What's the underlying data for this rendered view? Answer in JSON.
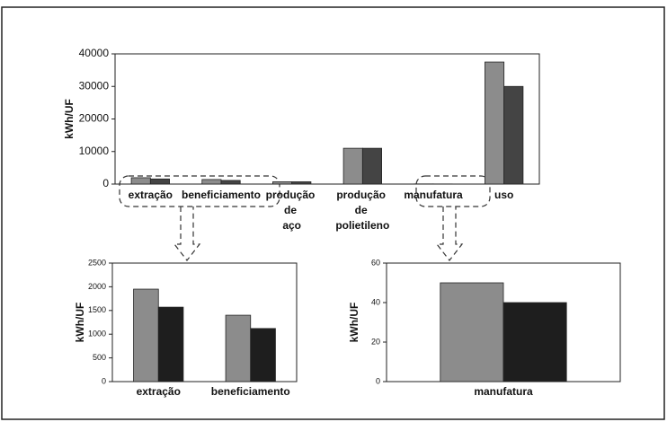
{
  "chart_data": [
    {
      "type": "bar",
      "ylabel": "kWh/UF",
      "categories": [
        "extração",
        "beneficiamento",
        "produção de aço",
        "produção de polietileno",
        "manufatura",
        "uso"
      ],
      "series": [
        {
          "color": "#8c8c8c",
          "values": [
            1950,
            1400,
            700,
            11000,
            50,
            37500
          ]
        },
        {
          "color": "#444444",
          "values": [
            1570,
            1120,
            700,
            11000,
            40,
            30000
          ]
        }
      ],
      "ylim": [
        0,
        40000
      ],
      "yticks": [
        0,
        10000,
        20000,
        30000,
        40000
      ]
    },
    {
      "type": "bar",
      "ylabel": "kWh/UF",
      "categories": [
        "extração",
        "beneficiamento"
      ],
      "series": [
        {
          "color": "#8c8c8c",
          "values": [
            1950,
            1400
          ]
        },
        {
          "color": "#1e1e1e",
          "values": [
            1570,
            1120
          ]
        }
      ],
      "ylim": [
        0,
        2500
      ],
      "yticks": [
        0,
        500,
        1000,
        1500,
        2000,
        2500
      ]
    },
    {
      "type": "bar",
      "ylabel": "kWh/UF",
      "categories": [
        "manufatura"
      ],
      "series": [
        {
          "color": "#8c8c8c",
          "values": [
            50
          ]
        },
        {
          "color": "#1e1e1e",
          "values": [
            40
          ]
        }
      ],
      "ylim": [
        0,
        60
      ],
      "yticks": [
        0,
        20,
        40,
        60
      ]
    }
  ]
}
